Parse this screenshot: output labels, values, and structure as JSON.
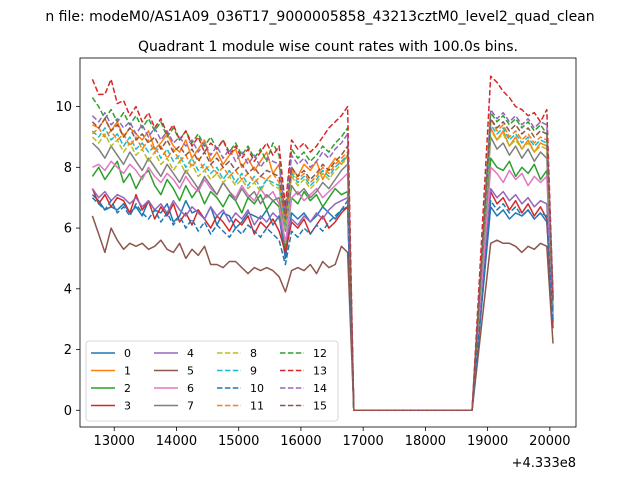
{
  "suptitle": "n file: modeM0/AS1A09_036T17_9000005858_43213cztM0_level2_quad_clean",
  "chart_data": {
    "type": "line",
    "title": "Quadrant 1 module wise count rates with 100.0s bins.",
    "xlabel": "",
    "ylabel": "",
    "x_offset_label": "+4.333e8",
    "xlim": [
      12450,
      20420
    ],
    "ylim": [
      -0.55,
      11.6
    ],
    "xticks": [
      13000,
      14000,
      15000,
      16000,
      17000,
      18000,
      19000,
      20000
    ],
    "yticks": [
      0,
      2,
      4,
      6,
      8,
      10
    ],
    "grid": false,
    "legend": {
      "placement": "lower-left",
      "columns": 4
    },
    "x_first_segment": {
      "start": 12650,
      "step": 100,
      "count": 42
    },
    "x_second_segment": {
      "start": 19050,
      "step": 100,
      "count": 11
    },
    "gap_segment": {
      "x": [
        16850,
        16950,
        17250,
        18750
      ],
      "value": 0
    },
    "series": [
      {
        "name": "0",
        "color": "#1f77b4",
        "dash": "solid",
        "seg1": [
          7.1,
          6.9,
          6.6,
          6.7,
          6.6,
          6.8,
          6.5,
          6.7,
          6.4,
          6.9,
          6.6,
          6.5,
          6.8,
          6.2,
          6.4,
          6.9,
          6.5,
          6.6,
          6.3,
          6.7,
          6.1,
          6.5,
          6.4,
          6.0,
          6.2,
          6.5,
          6.4,
          6.3,
          6.6,
          6.1,
          6.4,
          5.0,
          6.5,
          6.3,
          6.5,
          6.2,
          6.4,
          6.7,
          6.5,
          6.3,
          6.6,
          6.7
        ],
        "seg2": [
          6.7,
          6.4,
          6.6,
          6.3,
          6.5,
          6.4,
          6.6,
          6.3,
          6.5,
          6.2,
          2.9
        ]
      },
      {
        "name": "1",
        "color": "#ff7f0e",
        "dash": "solid",
        "seg1": [
          9.4,
          9.3,
          9.6,
          9.2,
          9.5,
          9.0,
          9.3,
          9.1,
          8.9,
          9.2,
          8.6,
          8.8,
          9.1,
          8.7,
          8.5,
          8.9,
          8.3,
          8.6,
          8.9,
          8.2,
          8.5,
          8.1,
          8.4,
          8.6,
          8.0,
          8.3,
          7.9,
          8.2,
          8.5,
          7.8,
          8.1,
          6.3,
          8.0,
          7.7,
          8.1,
          7.9,
          8.2,
          7.6,
          8.0,
          8.3,
          8.1,
          8.4
        ],
        "seg2": [
          9.3,
          8.9,
          9.2,
          8.7,
          9.0,
          8.6,
          8.9,
          8.5,
          8.8,
          8.7,
          3.2
        ]
      },
      {
        "name": "2",
        "color": "#2ca02c",
        "dash": "solid",
        "seg1": [
          7.7,
          8.0,
          7.6,
          7.9,
          8.2,
          7.5,
          7.8,
          7.3,
          7.7,
          7.9,
          7.4,
          7.1,
          7.6,
          7.3,
          6.9,
          7.4,
          7.0,
          7.3,
          6.8,
          7.2,
          7.0,
          6.7,
          7.1,
          6.9,
          6.5,
          7.0,
          6.8,
          7.1,
          6.6,
          6.9,
          6.7,
          5.3,
          7.0,
          6.8,
          7.2,
          6.9,
          7.1,
          6.7,
          7.0,
          7.3,
          7.1,
          7.2
        ],
        "seg2": [
          8.3,
          8.0,
          7.9,
          8.2,
          7.7,
          8.0,
          7.8,
          8.1,
          7.6,
          7.9,
          3.4
        ]
      },
      {
        "name": "3",
        "color": "#d62728",
        "dash": "solid",
        "seg1": [
          7.3,
          6.8,
          7.1,
          6.7,
          7.0,
          6.9,
          6.5,
          7.1,
          6.6,
          6.9,
          6.3,
          6.7,
          6.4,
          6.8,
          6.2,
          6.5,
          6.1,
          6.6,
          6.3,
          6.0,
          6.4,
          6.2,
          5.9,
          6.3,
          6.1,
          6.4,
          5.8,
          6.2,
          6.0,
          6.3,
          5.9,
          5.2,
          6.2,
          6.0,
          6.3,
          5.8,
          6.1,
          6.4,
          6.0,
          6.2,
          6.5,
          6.7
        ],
        "seg2": [
          7.2,
          6.8,
          7.0,
          6.6,
          6.9,
          6.5,
          6.8,
          6.4,
          6.7,
          6.3,
          2.7
        ]
      },
      {
        "name": "4",
        "color": "#9467bd",
        "dash": "solid",
        "seg1": [
          7.3,
          7.0,
          7.2,
          6.9,
          7.1,
          7.0,
          6.8,
          7.0,
          6.7,
          6.9,
          6.6,
          6.8,
          6.5,
          6.9,
          6.6,
          6.4,
          6.7,
          6.5,
          6.3,
          6.7,
          6.4,
          6.6,
          6.2,
          6.5,
          6.3,
          6.6,
          6.1,
          6.4,
          6.2,
          6.5,
          6.3,
          5.6,
          6.3,
          6.1,
          6.4,
          6.2,
          6.5,
          6.3,
          6.6,
          6.8,
          6.9,
          7.0
        ],
        "seg2": [
          7.3,
          7.0,
          7.2,
          6.9,
          7.1,
          6.8,
          7.0,
          6.7,
          6.9,
          6.8,
          3.0
        ]
      },
      {
        "name": "5",
        "color": "#8c564b",
        "dash": "solid",
        "seg1": [
          6.4,
          5.8,
          5.2,
          6.0,
          5.6,
          5.3,
          5.5,
          5.4,
          5.5,
          5.3,
          5.4,
          5.6,
          5.3,
          5.2,
          5.5,
          5.0,
          5.3,
          5.1,
          5.4,
          4.8,
          4.8,
          4.7,
          4.9,
          4.9,
          4.7,
          4.5,
          4.7,
          4.6,
          4.7,
          4.6,
          4.4,
          3.9,
          4.6,
          4.7,
          4.6,
          4.8,
          4.5,
          4.9,
          4.7,
          4.8,
          5.4,
          5.2
        ],
        "seg2": [
          5.5,
          5.6,
          5.5,
          5.5,
          5.4,
          5.2,
          5.4,
          5.3,
          5.5,
          5.4,
          2.2
        ]
      },
      {
        "name": "6",
        "color": "#e377c2",
        "dash": "solid",
        "seg1": [
          8.0,
          8.1,
          7.9,
          8.2,
          8.0,
          7.8,
          8.1,
          7.9,
          7.6,
          8.0,
          7.7,
          7.5,
          7.8,
          7.6,
          7.3,
          7.7,
          7.4,
          7.2,
          7.6,
          7.3,
          7.1,
          7.5,
          7.2,
          7.0,
          7.4,
          7.1,
          6.9,
          7.3,
          7.0,
          7.2,
          6.8,
          5.5,
          7.0,
          7.2,
          6.9,
          7.1,
          7.3,
          7.0,
          7.2,
          7.4,
          7.6,
          7.8
        ],
        "seg2": [
          8.0,
          7.8,
          7.5,
          7.9,
          7.6,
          7.8,
          7.4,
          7.7,
          7.5,
          7.7,
          3.1
        ]
      },
      {
        "name": "7",
        "color": "#7f7f7f",
        "dash": "solid",
        "seg1": [
          8.8,
          8.6,
          8.3,
          8.7,
          8.4,
          8.1,
          8.5,
          8.2,
          7.9,
          8.3,
          8.0,
          7.7,
          8.1,
          7.8,
          7.5,
          7.9,
          7.6,
          7.3,
          7.7,
          7.4,
          7.1,
          7.5,
          7.2,
          6.9,
          7.3,
          7.0,
          7.2,
          6.8,
          7.1,
          6.9,
          7.0,
          5.9,
          7.4,
          7.1,
          7.3,
          7.0,
          7.2,
          7.5,
          7.3,
          7.6,
          7.9,
          8.1
        ],
        "seg2": [
          9.0,
          8.6,
          8.8,
          8.4,
          8.7,
          8.3,
          8.6,
          8.2,
          8.5,
          8.3,
          3.3
        ]
      },
      {
        "name": "8",
        "color": "#bcbd22",
        "dash": "dashed",
        "seg1": [
          9.0,
          8.8,
          9.1,
          8.7,
          8.9,
          8.5,
          8.8,
          8.4,
          8.6,
          8.2,
          8.5,
          8.1,
          8.3,
          7.9,
          8.2,
          7.8,
          8.1,
          7.7,
          7.9,
          7.6,
          7.8,
          7.5,
          7.7,
          7.4,
          7.6,
          7.3,
          7.5,
          7.2,
          7.6,
          7.4,
          7.3,
          6.0,
          7.7,
          7.4,
          7.6,
          7.3,
          7.5,
          7.8,
          7.6,
          7.9,
          8.1,
          8.3
        ],
        "seg2": [
          9.2,
          8.9,
          9.1,
          8.7,
          8.9,
          8.6,
          8.8,
          8.5,
          8.7,
          8.6,
          3.5
        ]
      },
      {
        "name": "9",
        "color": "#17becf",
        "dash": "dashed",
        "seg1": [
          9.2,
          9.0,
          9.3,
          8.9,
          9.1,
          8.7,
          9.0,
          8.6,
          8.8,
          8.5,
          8.7,
          8.3,
          8.6,
          8.2,
          8.4,
          8.0,
          8.3,
          7.9,
          8.1,
          7.8,
          8.0,
          7.6,
          7.9,
          7.5,
          7.8,
          7.4,
          7.7,
          7.3,
          7.6,
          7.5,
          7.4,
          6.1,
          7.8,
          7.5,
          7.7,
          7.4,
          7.6,
          7.9,
          7.7,
          8.0,
          8.2,
          8.4
        ],
        "seg2": [
          9.4,
          9.1,
          9.3,
          8.9,
          9.1,
          8.8,
          9.0,
          8.7,
          8.9,
          8.8,
          3.6
        ]
      },
      {
        "name": "10",
        "color": "#1f77b4",
        "dash": "dashed",
        "seg1": [
          7.0,
          6.8,
          6.6,
          6.9,
          6.5,
          6.7,
          6.4,
          6.8,
          6.5,
          6.3,
          6.6,
          6.2,
          6.5,
          6.1,
          6.4,
          6.0,
          6.3,
          5.9,
          6.2,
          5.8,
          6.1,
          5.9,
          5.7,
          6.0,
          5.8,
          6.1,
          5.9,
          5.7,
          6.0,
          5.8,
          5.6,
          4.8,
          5.9,
          5.7,
          6.0,
          5.8,
          6.1,
          5.9,
          6.2,
          6.4,
          6.6,
          6.9
        ],
        "seg2": [
          6.9,
          6.6,
          6.8,
          6.5,
          6.7,
          6.4,
          6.6,
          6.3,
          6.5,
          6.4,
          2.9
        ]
      },
      {
        "name": "11",
        "color": "#ff7f0e",
        "dash": "dashed",
        "seg1": [
          9.1,
          9.3,
          9.0,
          9.2,
          8.9,
          9.1,
          8.7,
          9.0,
          8.6,
          8.9,
          8.5,
          8.7,
          8.3,
          8.6,
          8.2,
          8.4,
          8.0,
          8.3,
          7.9,
          8.1,
          7.8,
          8.0,
          7.7,
          7.9,
          7.6,
          7.8,
          7.5,
          7.7,
          7.6,
          7.8,
          7.5,
          6.2,
          7.9,
          7.6,
          7.8,
          7.5,
          7.7,
          8.0,
          7.8,
          8.1,
          8.3,
          8.5
        ],
        "seg2": [
          9.6,
          9.2,
          9.4,
          9.0,
          9.2,
          8.9,
          9.1,
          8.8,
          9.0,
          8.9,
          3.7
        ]
      },
      {
        "name": "12",
        "color": "#2ca02c",
        "dash": "dashed",
        "seg1": [
          10.3,
          10.0,
          9.6,
          9.9,
          9.5,
          9.8,
          9.4,
          9.7,
          9.3,
          9.6,
          9.2,
          9.5,
          9.0,
          9.3,
          8.9,
          9.2,
          8.8,
          9.1,
          8.7,
          9.0,
          8.6,
          8.9,
          8.5,
          8.8,
          8.4,
          8.7,
          8.3,
          8.6,
          8.2,
          8.8,
          8.4,
          6.6,
          8.6,
          8.3,
          8.5,
          8.2,
          8.4,
          8.7,
          8.5,
          8.8,
          9.0,
          9.3
        ],
        "seg2": [
          9.8,
          9.5,
          9.7,
          9.4,
          9.6,
          9.3,
          9.5,
          9.2,
          9.4,
          9.1,
          3.8
        ]
      },
      {
        "name": "13",
        "color": "#d62728",
        "dash": "dashed",
        "seg1": [
          10.9,
          10.4,
          10.4,
          10.9,
          10.1,
          10.2,
          9.7,
          10.0,
          9.5,
          9.8,
          9.3,
          9.6,
          9.1,
          9.4,
          8.9,
          9.2,
          8.7,
          9.0,
          8.5,
          8.8,
          8.6,
          8.9,
          8.4,
          8.7,
          8.3,
          8.6,
          8.2,
          8.5,
          8.8,
          8.4,
          8.7,
          6.7,
          8.9,
          8.6,
          8.8,
          8.5,
          8.7,
          9.0,
          9.3,
          9.5,
          9.7,
          10.0
        ],
        "seg2": [
          11.0,
          10.8,
          10.5,
          10.3,
          10.0,
          9.9,
          9.7,
          9.8,
          9.5,
          9.9,
          3.8
        ]
      },
      {
        "name": "14",
        "color": "#9467bd",
        "dash": "dashed",
        "seg1": [
          9.7,
          9.5,
          9.8,
          9.4,
          9.6,
          9.3,
          9.5,
          9.1,
          9.4,
          9.0,
          9.3,
          8.9,
          9.2,
          8.8,
          9.0,
          8.7,
          8.9,
          8.5,
          8.8,
          8.4,
          8.7,
          8.3,
          8.6,
          8.2,
          8.5,
          8.1,
          8.4,
          8.0,
          8.3,
          8.2,
          8.1,
          6.4,
          8.4,
          8.1,
          8.3,
          8.0,
          8.2,
          8.5,
          8.3,
          8.6,
          8.8,
          9.1
        ],
        "seg2": [
          9.9,
          9.6,
          9.8,
          9.5,
          9.7,
          9.4,
          9.6,
          9.3,
          9.5,
          9.4,
          3.7
        ]
      },
      {
        "name": "15",
        "color": "#8c564b",
        "dash": "dashed",
        "seg1": [
          9.5,
          9.3,
          9.6,
          9.2,
          9.4,
          9.0,
          9.3,
          8.9,
          9.1,
          8.8,
          9.0,
          8.6,
          8.9,
          8.5,
          8.7,
          8.4,
          8.6,
          8.2,
          8.5,
          8.1,
          8.3,
          8.0,
          8.2,
          7.9,
          8.1,
          7.8,
          8.0,
          7.7,
          7.9,
          7.8,
          7.7,
          6.3,
          8.0,
          7.7,
          7.9,
          7.6,
          7.8,
          8.1,
          7.9,
          8.2,
          8.4,
          8.7
        ],
        "seg2": [
          9.6,
          9.3,
          9.5,
          9.2,
          9.4,
          9.1,
          9.3,
          9.0,
          9.2,
          9.1,
          3.6
        ]
      }
    ]
  }
}
